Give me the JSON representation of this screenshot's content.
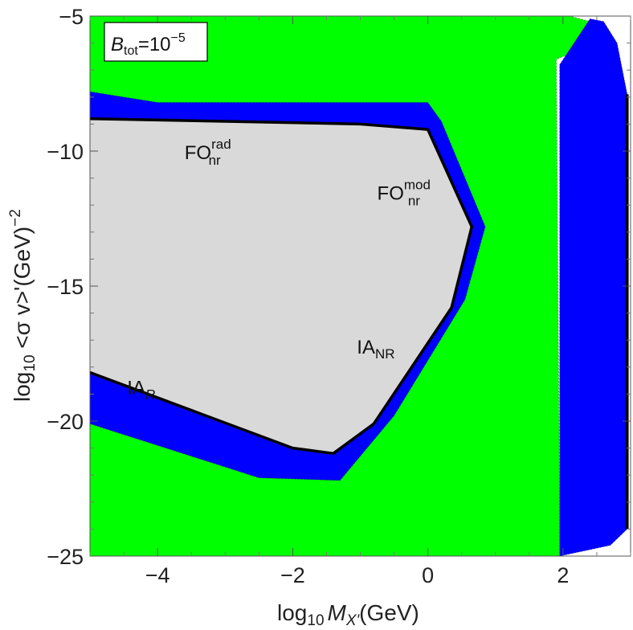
{
  "chart_data": {
    "type": "region_plot",
    "xlabel_parts": {
      "pre": "log",
      "sub": "10",
      "var": "M",
      "varsub": "X'",
      "post": "(GeV)"
    },
    "ylabel_parts": {
      "pre": "log",
      "sub": "10",
      "mid": " <σ v>'(GeV)",
      "sup": "−2"
    },
    "xlim": [
      -5,
      3
    ],
    "ylim": [
      -25,
      -5
    ],
    "xticks": [
      -4,
      -2,
      0,
      2
    ],
    "xtick_labels": [
      "−4",
      "−2",
      "0",
      "2"
    ],
    "yticks": [
      -5,
      -10,
      -15,
      -20,
      -25
    ],
    "ytick_labels": [
      "−5",
      "−10",
      "−15",
      "−20",
      "−25"
    ],
    "colors": {
      "green": "#00ff00",
      "blue": "#0000ff",
      "gray": "#d9d9d9",
      "boundary": "#000000"
    },
    "legend_box": {
      "base": "B",
      "sub": "tot",
      "eq": "=10",
      "sup": "−5",
      "position": "top-left"
    },
    "regions": [
      {
        "name": "green",
        "polygon": [
          [
            -5,
            -5
          ],
          [
            2.1,
            -5
          ],
          [
            2.4,
            -5.2
          ],
          [
            2.6,
            -5.9
          ],
          [
            1.9,
            -6.6
          ],
          [
            1.95,
            -23.5
          ],
          [
            1.95,
            -25
          ],
          [
            -5,
            -25
          ]
        ]
      },
      {
        "name": "blue-top-band",
        "polygon": [
          [
            -5,
            -7.8
          ],
          [
            -4,
            -8.2
          ],
          [
            -2,
            -8.2
          ],
          [
            0,
            -8.2
          ],
          [
            0.2,
            -8.9
          ],
          [
            0.85,
            -12.8
          ],
          [
            0.55,
            -15.5
          ],
          [
            -0.5,
            -19.8
          ],
          [
            -1.3,
            -22.2
          ],
          [
            -2.5,
            -22.1
          ],
          [
            -5,
            -20.1
          ],
          [
            -5,
            -18.2
          ],
          [
            -2,
            -21
          ],
          [
            -1.4,
            -21.2
          ],
          [
            -0.8,
            -20.1
          ],
          [
            0.35,
            -15.8
          ],
          [
            0.65,
            -12.8
          ],
          [
            0,
            -9.2
          ],
          [
            -1,
            -9
          ],
          [
            -3,
            -8.9
          ],
          [
            -5,
            -8.8
          ]
        ]
      },
      {
        "name": "blue-right-band",
        "polygon": [
          [
            1.95,
            -6.8
          ],
          [
            2.4,
            -5.1
          ],
          [
            2.6,
            -5.2
          ],
          [
            2.8,
            -6
          ],
          [
            2.95,
            -7.9
          ],
          [
            2.95,
            -24
          ],
          [
            2.7,
            -24.6
          ],
          [
            1.95,
            -25
          ]
        ]
      },
      {
        "name": "gray",
        "polygon": [
          [
            -5,
            -8.8
          ],
          [
            -3,
            -8.9
          ],
          [
            -1,
            -9
          ],
          [
            0,
            -9.2
          ],
          [
            0.65,
            -12.8
          ],
          [
            0.35,
            -15.8
          ],
          [
            -0.8,
            -20.1
          ],
          [
            -1.4,
            -21.2
          ],
          [
            -2,
            -21
          ],
          [
            -5,
            -18.2
          ]
        ]
      }
    ],
    "boundaries": [
      {
        "name": "gray-boundary",
        "points": [
          [
            -5,
            -8.8
          ],
          [
            -3,
            -8.9
          ],
          [
            -1,
            -9
          ],
          [
            0,
            -9.2
          ],
          [
            0.65,
            -12.8
          ],
          [
            0.35,
            -15.8
          ],
          [
            -0.8,
            -20.1
          ],
          [
            -1.4,
            -21.2
          ],
          [
            -2,
            -21
          ],
          [
            -5,
            -18.2
          ]
        ]
      },
      {
        "name": "right-boundary",
        "points": [
          [
            2.95,
            -7.9
          ],
          [
            2.95,
            -24
          ]
        ]
      }
    ],
    "annotations": [
      {
        "name": "fo-nr-rad",
        "base": "FO",
        "sub": "nr",
        "sup": "rad",
        "x": -3.6,
        "y": -10.3
      },
      {
        "name": "fo-nr-mod",
        "base": "FO",
        "sub": "nr",
        "sup": "mod",
        "x": -0.75,
        "y": -11.8
      },
      {
        "name": "ia-nr",
        "base": "IA",
        "sub": "NR",
        "sup": "",
        "x": -1.05,
        "y": -17.5
      },
      {
        "name": "ia-r",
        "base": "IA",
        "sub": "R",
        "sup": "",
        "x": -4.45,
        "y": -19
      }
    ]
  }
}
